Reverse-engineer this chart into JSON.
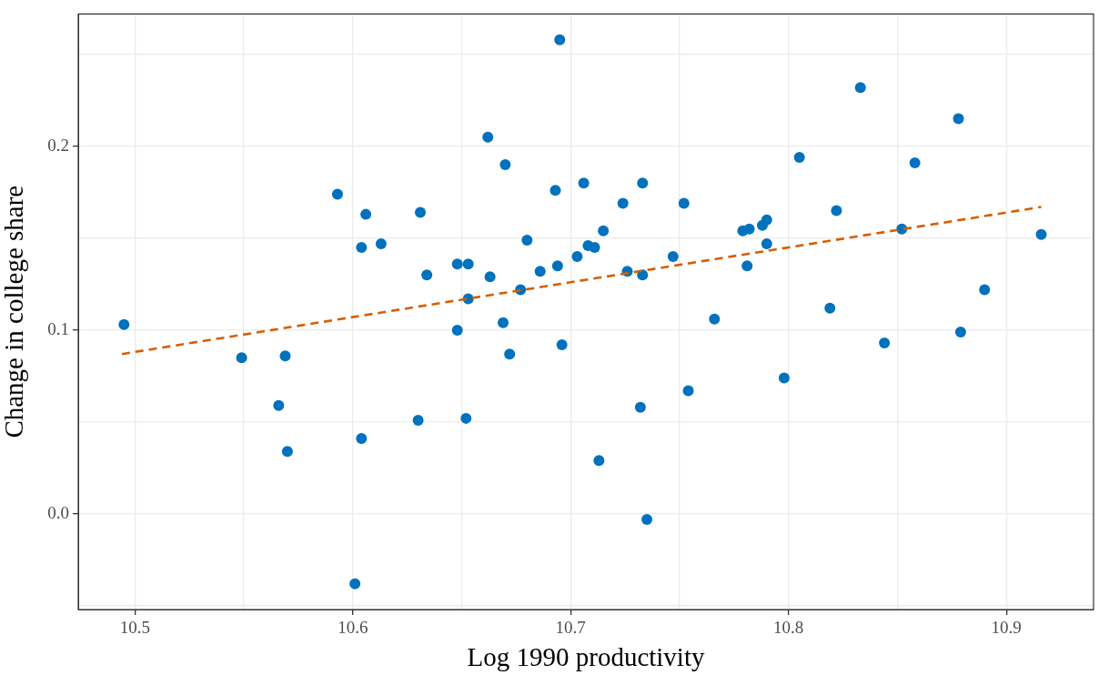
{
  "chart_data": {
    "type": "scatter",
    "xlabel": "Log 1990 productivity",
    "ylabel": "Change in college share",
    "xlim": [
      10.474,
      10.94
    ],
    "ylim": [
      -0.052,
      0.272
    ],
    "xticks": [
      10.5,
      {
        "value": 10.55,
        "label": null
      },
      10.6,
      {
        "value": 10.65,
        "label": null
      },
      10.7,
      {
        "value": 10.75,
        "label": null
      },
      10.8,
      {
        "value": 10.85,
        "label": null
      },
      10.9
    ],
    "yticks": [
      {
        "value": -0.05,
        "label": null
      },
      {
        "value": 0,
        "label": "0.0"
      },
      {
        "value": 0.05,
        "label": null
      },
      0.1,
      {
        "value": 0.15,
        "label": null
      },
      0.2,
      {
        "value": 0.25,
        "label": null
      }
    ],
    "grid": true,
    "legend": false,
    "series": [
      {
        "type": "scatter",
        "color": "#0072bd",
        "marker": "circle",
        "x": [
          10.495,
          10.549,
          10.569,
          10.566,
          10.57,
          10.593,
          10.601,
          10.606,
          10.604,
          10.613,
          10.604,
          10.631,
          10.634,
          10.63,
          10.648,
          10.653,
          10.663,
          10.648,
          10.653,
          10.652,
          10.662,
          10.67,
          10.669,
          10.672,
          10.677,
          10.68,
          10.686,
          10.693,
          10.694,
          10.695,
          10.696,
          10.703,
          10.706,
          10.733,
          10.724,
          10.752,
          10.715,
          10.708,
          10.711,
          10.747,
          10.726,
          10.733,
          10.766,
          10.732,
          10.754,
          10.713,
          10.735,
          10.798,
          10.805,
          10.822,
          10.819,
          10.833,
          10.844,
          10.852,
          10.858,
          10.878,
          10.879,
          10.89,
          10.916,
          10.779,
          10.782,
          10.788,
          10.79,
          10.79,
          10.781
        ],
        "values": [
          0.103,
          0.085,
          0.086,
          0.059,
          0.034,
          0.174,
          -0.038,
          0.163,
          0.145,
          0.147,
          0.041,
          0.164,
          0.13,
          0.051,
          0.136,
          0.136,
          0.129,
          0.1,
          0.117,
          0.052,
          0.205,
          0.19,
          0.104,
          0.087,
          0.122,
          0.149,
          0.132,
          0.176,
          0.135,
          0.258,
          0.092,
          0.14,
          0.18,
          0.18,
          0.169,
          0.169,
          0.154,
          0.146,
          0.145,
          0.14,
          0.132,
          0.13,
          0.106,
          0.058,
          0.067,
          0.029,
          -0.003,
          0.074,
          0.194,
          0.165,
          0.112,
          0.232,
          0.093,
          0.155,
          0.191,
          0.215,
          0.099,
          0.122,
          0.152,
          0.154,
          0.155,
          0.157,
          0.16,
          0.147,
          0.135
        ]
      },
      {
        "type": "line",
        "color": "#d55e00",
        "line_style": "dashed",
        "marker": "none",
        "x": [
          10.494,
          10.916
        ],
        "values": [
          0.087,
          0.167
        ]
      }
    ]
  }
}
